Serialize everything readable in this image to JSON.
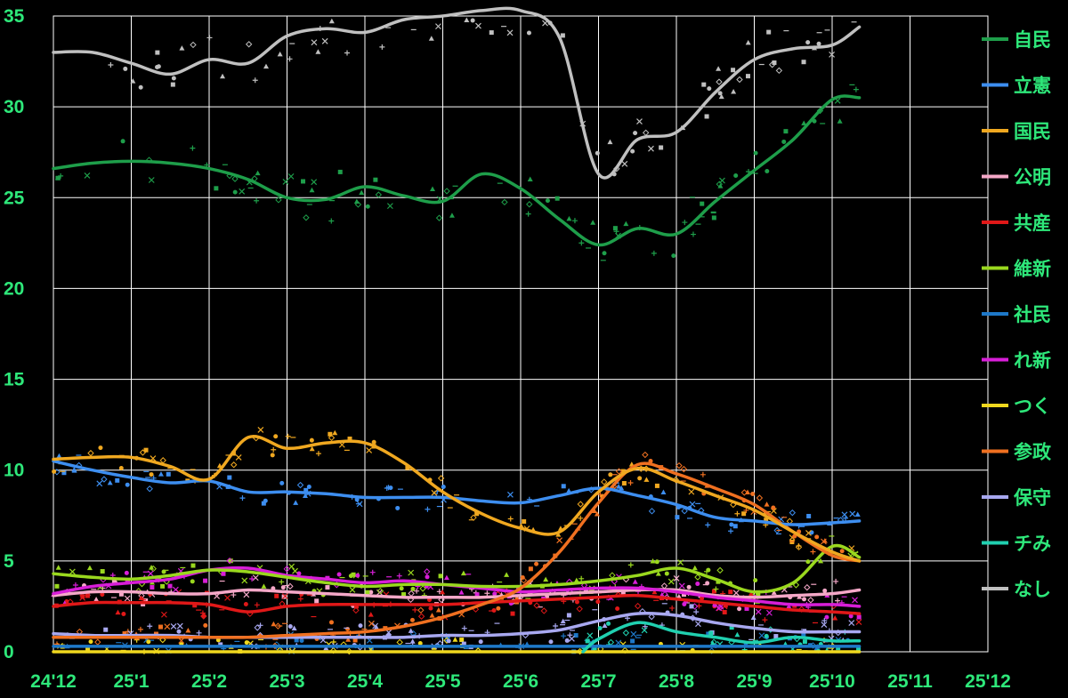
{
  "chart_data": {
    "type": "line",
    "title": "",
    "xlabel": "",
    "ylabel": "",
    "ylim": [
      0,
      35
    ],
    "yticks": [
      "0",
      "5",
      "10",
      "15",
      "20",
      "25",
      "30",
      "35"
    ],
    "xlim": [
      0,
      12
    ],
    "xticks": [
      "24'12",
      "25'1",
      "25'2",
      "25'3",
      "25'4",
      "25'5",
      "25'6",
      "25'7",
      "25'8",
      "25'9",
      "25'10",
      "25'11",
      "25'12"
    ],
    "grid": true,
    "legend_position": "right",
    "text_color": "#2ee87a",
    "background": "#000000",
    "x_unit_note_months_from": "24'12",
    "series": [
      {
        "name": "自民",
        "color": "#1e9e4a",
        "points": [
          [
            0,
            26.6
          ],
          [
            0.5,
            26.9
          ],
          [
            1,
            27.0
          ],
          [
            1.5,
            26.9
          ],
          [
            2,
            26.6
          ],
          [
            2.5,
            26.0
          ],
          [
            3,
            25.0
          ],
          [
            3.5,
            24.9
          ],
          [
            4,
            25.6
          ],
          [
            4.5,
            25.1
          ],
          [
            5,
            24.8
          ],
          [
            5.5,
            26.3
          ],
          [
            6,
            25.5
          ],
          [
            6.5,
            23.8
          ],
          [
            7,
            22.4
          ],
          [
            7.5,
            23.3
          ],
          [
            8,
            23.0
          ],
          [
            8.5,
            24.8
          ],
          [
            9,
            26.5
          ],
          [
            9.5,
            28.2
          ],
          [
            10,
            30.4
          ],
          [
            10.35,
            30.5
          ]
        ]
      },
      {
        "name": "立憲",
        "color": "#3d8ef0",
        "points": [
          [
            0,
            10.5
          ],
          [
            0.5,
            10.0
          ],
          [
            1,
            9.6
          ],
          [
            1.5,
            9.3
          ],
          [
            2,
            9.4
          ],
          [
            2.5,
            8.8
          ],
          [
            3,
            8.8
          ],
          [
            3.5,
            8.7
          ],
          [
            4,
            8.5
          ],
          [
            4.5,
            8.5
          ],
          [
            5,
            8.5
          ],
          [
            5.5,
            8.3
          ],
          [
            6,
            8.2
          ],
          [
            6.5,
            8.6
          ],
          [
            7,
            9.0
          ],
          [
            7.5,
            8.6
          ],
          [
            8,
            8.1
          ],
          [
            8.5,
            7.4
          ],
          [
            9,
            7.2
          ],
          [
            9.5,
            7.0
          ],
          [
            10,
            7.1
          ],
          [
            10.35,
            7.2
          ]
        ]
      },
      {
        "name": "国民",
        "color": "#f0a820",
        "points": [
          [
            0,
            10.6
          ],
          [
            0.5,
            10.7
          ],
          [
            1,
            10.7
          ],
          [
            1.5,
            10.2
          ],
          [
            2,
            9.5
          ],
          [
            2.5,
            11.8
          ],
          [
            3,
            11.2
          ],
          [
            3.5,
            11.5
          ],
          [
            4,
            11.5
          ],
          [
            4.5,
            10.4
          ],
          [
            5,
            8.8
          ],
          [
            5.5,
            7.6
          ],
          [
            6,
            6.8
          ],
          [
            6.5,
            6.6
          ],
          [
            7,
            8.8
          ],
          [
            7.5,
            10.1
          ],
          [
            8,
            9.4
          ],
          [
            8.5,
            8.6
          ],
          [
            9,
            7.8
          ],
          [
            9.5,
            6.6
          ],
          [
            10,
            5.5
          ],
          [
            10.35,
            5.0
          ]
        ]
      },
      {
        "name": "公明",
        "color": "#f5a8c8",
        "points": [
          [
            0,
            3.1
          ],
          [
            0.5,
            3.3
          ],
          [
            1,
            3.3
          ],
          [
            1.5,
            3.2
          ],
          [
            2,
            3.2
          ],
          [
            2.5,
            3.4
          ],
          [
            3,
            3.3
          ],
          [
            3.5,
            3.2
          ],
          [
            4,
            3.1
          ],
          [
            4.5,
            3.0
          ],
          [
            5,
            3.0
          ],
          [
            5.5,
            3.0
          ],
          [
            6,
            3.1
          ],
          [
            6.5,
            3.2
          ],
          [
            7,
            3.3
          ],
          [
            7.5,
            3.4
          ],
          [
            8,
            3.4
          ],
          [
            8.5,
            3.1
          ],
          [
            9,
            3.0
          ],
          [
            9.5,
            3.1
          ],
          [
            10,
            3.2
          ],
          [
            10.35,
            3.4
          ]
        ]
      },
      {
        "name": "共産",
        "color": "#e01818",
        "points": [
          [
            0,
            2.5
          ],
          [
            0.5,
            2.7
          ],
          [
            1,
            2.7
          ],
          [
            1.5,
            2.7
          ],
          [
            2,
            2.6
          ],
          [
            2.5,
            2.2
          ],
          [
            3,
            2.5
          ],
          [
            3.5,
            2.6
          ],
          [
            4,
            2.6
          ],
          [
            4.5,
            2.6
          ],
          [
            5,
            2.6
          ],
          [
            5.5,
            2.7
          ],
          [
            6,
            2.8
          ],
          [
            6.5,
            2.9
          ],
          [
            7,
            3.0
          ],
          [
            7.5,
            3.1
          ],
          [
            8,
            2.9
          ],
          [
            8.5,
            2.7
          ],
          [
            9,
            2.5
          ],
          [
            9.5,
            2.3
          ],
          [
            10,
            2.2
          ],
          [
            10.35,
            2.1
          ]
        ]
      },
      {
        "name": "維新",
        "color": "#9ad81e",
        "points": [
          [
            0,
            4.3
          ],
          [
            0.5,
            4.1
          ],
          [
            1,
            4.0
          ],
          [
            1.5,
            4.2
          ],
          [
            2,
            4.5
          ],
          [
            2.5,
            4.4
          ],
          [
            3,
            4.1
          ],
          [
            3.5,
            3.8
          ],
          [
            4,
            3.6
          ],
          [
            4.5,
            3.7
          ],
          [
            5,
            3.7
          ],
          [
            5.5,
            3.6
          ],
          [
            6,
            3.6
          ],
          [
            6.5,
            3.7
          ],
          [
            7,
            3.9
          ],
          [
            7.5,
            4.2
          ],
          [
            8,
            4.6
          ],
          [
            8.5,
            4.0
          ],
          [
            9,
            3.3
          ],
          [
            9.5,
            3.8
          ],
          [
            10,
            5.8
          ],
          [
            10.35,
            5.2
          ]
        ]
      },
      {
        "name": "社民",
        "color": "#1e78c8",
        "points": [
          [
            0,
            0.3
          ],
          [
            1,
            0.3
          ],
          [
            2,
            0.3
          ],
          [
            3,
            0.3
          ],
          [
            4,
            0.3
          ],
          [
            5,
            0.3
          ],
          [
            6,
            0.3
          ],
          [
            7,
            0.3
          ],
          [
            8,
            0.3
          ],
          [
            9,
            0.3
          ],
          [
            10,
            0.3
          ],
          [
            10.35,
            0.3
          ]
        ]
      },
      {
        "name": "れ新",
        "color": "#d81ed8",
        "points": [
          [
            0,
            3.2
          ],
          [
            0.5,
            3.6
          ],
          [
            1,
            3.8
          ],
          [
            1.5,
            4.0
          ],
          [
            2,
            4.5
          ],
          [
            2.5,
            4.6
          ],
          [
            3,
            4.2
          ],
          [
            3.5,
            4.0
          ],
          [
            4,
            3.8
          ],
          [
            4.5,
            3.9
          ],
          [
            5,
            3.7
          ],
          [
            5.5,
            3.5
          ],
          [
            6,
            3.3
          ],
          [
            6.5,
            3.4
          ],
          [
            7,
            3.5
          ],
          [
            7.5,
            3.5
          ],
          [
            8,
            3.3
          ],
          [
            8.5,
            3.0
          ],
          [
            9,
            2.8
          ],
          [
            9.5,
            2.6
          ],
          [
            10,
            2.6
          ],
          [
            10.35,
            2.5
          ]
        ]
      },
      {
        "name": "つく",
        "color": "#f0d81e",
        "points": [
          [
            0,
            0.0
          ],
          [
            2,
            0.0
          ],
          [
            4,
            0.0
          ],
          [
            6,
            0.0
          ],
          [
            8,
            0.0
          ],
          [
            10.35,
            0.0
          ]
        ]
      },
      {
        "name": "参政",
        "color": "#f07020",
        "points": [
          [
            0,
            0.8
          ],
          [
            0.5,
            0.8
          ],
          [
            1,
            0.8
          ],
          [
            1.5,
            0.8
          ],
          [
            2,
            0.8
          ],
          [
            2.5,
            0.8
          ],
          [
            3,
            0.9
          ],
          [
            3.5,
            1.0
          ],
          [
            4,
            1.1
          ],
          [
            4.5,
            1.4
          ],
          [
            5,
            1.9
          ],
          [
            5.5,
            2.6
          ],
          [
            6,
            3.5
          ],
          [
            6.5,
            5.5
          ],
          [
            7,
            8.2
          ],
          [
            7.5,
            10.3
          ],
          [
            8,
            9.8
          ],
          [
            8.5,
            9.0
          ],
          [
            9,
            8.1
          ],
          [
            9.5,
            6.6
          ],
          [
            10,
            5.3
          ],
          [
            10.35,
            5.0
          ]
        ]
      },
      {
        "name": "保守",
        "color": "#a8a8f0",
        "points": [
          [
            0,
            1.0
          ],
          [
            0.5,
            0.9
          ],
          [
            1,
            0.9
          ],
          [
            1.5,
            0.9
          ],
          [
            2,
            0.8
          ],
          [
            2.5,
            0.8
          ],
          [
            3,
            0.8
          ],
          [
            3.5,
            0.8
          ],
          [
            4,
            0.8
          ],
          [
            4.5,
            0.8
          ],
          [
            5,
            0.9
          ],
          [
            5.5,
            0.9
          ],
          [
            6,
            1.0
          ],
          [
            6.5,
            1.2
          ],
          [
            7,
            1.7
          ],
          [
            7.5,
            2.1
          ],
          [
            8,
            2.0
          ],
          [
            8.5,
            1.6
          ],
          [
            9,
            1.3
          ],
          [
            9.5,
            1.1
          ],
          [
            10,
            1.1
          ],
          [
            10.35,
            1.1
          ]
        ]
      },
      {
        "name": "チみ",
        "color": "#20d0b0",
        "points": [
          [
            6.8,
            0.0
          ],
          [
            7,
            0.7
          ],
          [
            7.5,
            1.6
          ],
          [
            8,
            1.1
          ],
          [
            8.5,
            0.8
          ],
          [
            9,
            0.5
          ],
          [
            9.5,
            0.8
          ],
          [
            10,
            0.6
          ],
          [
            10.35,
            0.6
          ]
        ]
      },
      {
        "name": "なし",
        "color": "#c0c0c0",
        "points": [
          [
            0,
            33.0
          ],
          [
            0.5,
            33.0
          ],
          [
            1,
            32.4
          ],
          [
            1.5,
            31.8
          ],
          [
            2,
            32.6
          ],
          [
            2.5,
            32.4
          ],
          [
            3,
            33.9
          ],
          [
            3.5,
            34.3
          ],
          [
            4,
            34.1
          ],
          [
            4.5,
            34.8
          ],
          [
            5,
            35.0
          ],
          [
            5.5,
            35.3
          ],
          [
            6,
            35.3
          ],
          [
            6.5,
            33.8
          ],
          [
            7,
            26.3
          ],
          [
            7.5,
            28.2
          ],
          [
            8,
            28.6
          ],
          [
            8.5,
            30.8
          ],
          [
            9,
            32.6
          ],
          [
            9.5,
            33.2
          ],
          [
            10,
            33.4
          ],
          [
            10.35,
            34.4
          ]
        ]
      }
    ]
  }
}
